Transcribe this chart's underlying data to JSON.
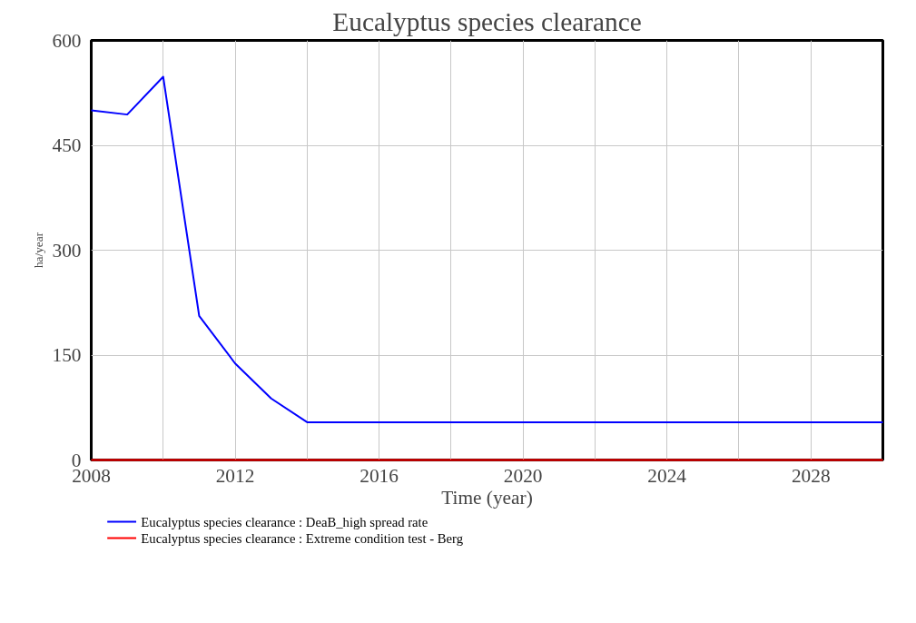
{
  "chart_data": {
    "type": "line",
    "title": "Eucalyptus species clearance",
    "xlabel": "Time (year)",
    "ylabel": "ha/year",
    "x": [
      2008,
      2009,
      2010,
      2011,
      2012,
      2013,
      2014,
      2016,
      2020,
      2024,
      2028,
      2030
    ],
    "series": [
      {
        "name": "Eucalyptus species clearance : DeaB_high spread rate",
        "color": "#0000ff",
        "values": [
          500,
          494,
          548,
          206,
          138,
          88,
          54,
          54,
          54,
          54,
          54,
          54
        ]
      },
      {
        "name": "Eucalyptus species clearance : Extreme condition test - Berg",
        "color": "#ff0000",
        "values": [
          0,
          0,
          0,
          0,
          0,
          0,
          0,
          0,
          0,
          0,
          0,
          0
        ]
      }
    ],
    "xlim": [
      2008,
      2030
    ],
    "ylim": [
      0,
      600
    ],
    "xticks": [
      2008,
      {
        "value": 2010,
        "label": null
      },
      2012,
      {
        "value": 2014,
        "label": null
      },
      2016,
      {
        "value": 2018,
        "label": null
      },
      2020,
      {
        "value": 2022,
        "label": null
      },
      2024,
      {
        "value": 2026,
        "label": null
      },
      2028
    ],
    "yticks": [
      0,
      150,
      300,
      450,
      600
    ],
    "grid": true,
    "legend": "bottom",
    "marker": "none",
    "line_style": "solid"
  }
}
